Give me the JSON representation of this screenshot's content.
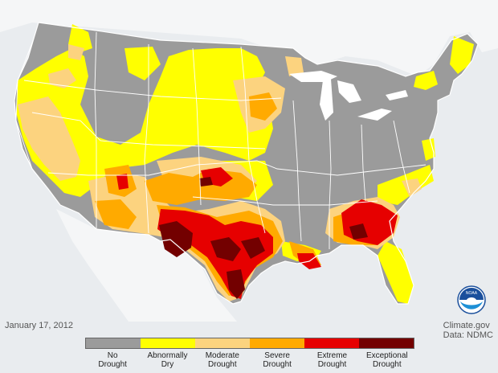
{
  "map": {
    "date": "January 17, 2012",
    "credit_line1": "Climate.gov",
    "credit_line2": "Data: NDMC",
    "logo_text": "NOAA"
  },
  "colors": {
    "ocean": "#e9ecef",
    "neighbor_land": "#f3f4f5",
    "lake": "#ffffff",
    "state_border": "#ffffff",
    "no_drought": "#9b9b9b",
    "abnormally_dry": "#ffff00",
    "moderate": "#fcd37f",
    "severe": "#ffaa00",
    "extreme": "#e60000",
    "exceptional": "#730000"
  },
  "legend": [
    {
      "label": "No Drought",
      "color": "#9b9b9b"
    },
    {
      "label": "Abnormally Dry",
      "color": "#ffff00"
    },
    {
      "label": "Moderate Drought",
      "color": "#fcd37f"
    },
    {
      "label": "Severe Drought",
      "color": "#ffaa00"
    },
    {
      "label": "Extreme Drought",
      "color": "#e60000"
    },
    {
      "label": "Exceptional Drought",
      "color": "#730000"
    }
  ]
}
